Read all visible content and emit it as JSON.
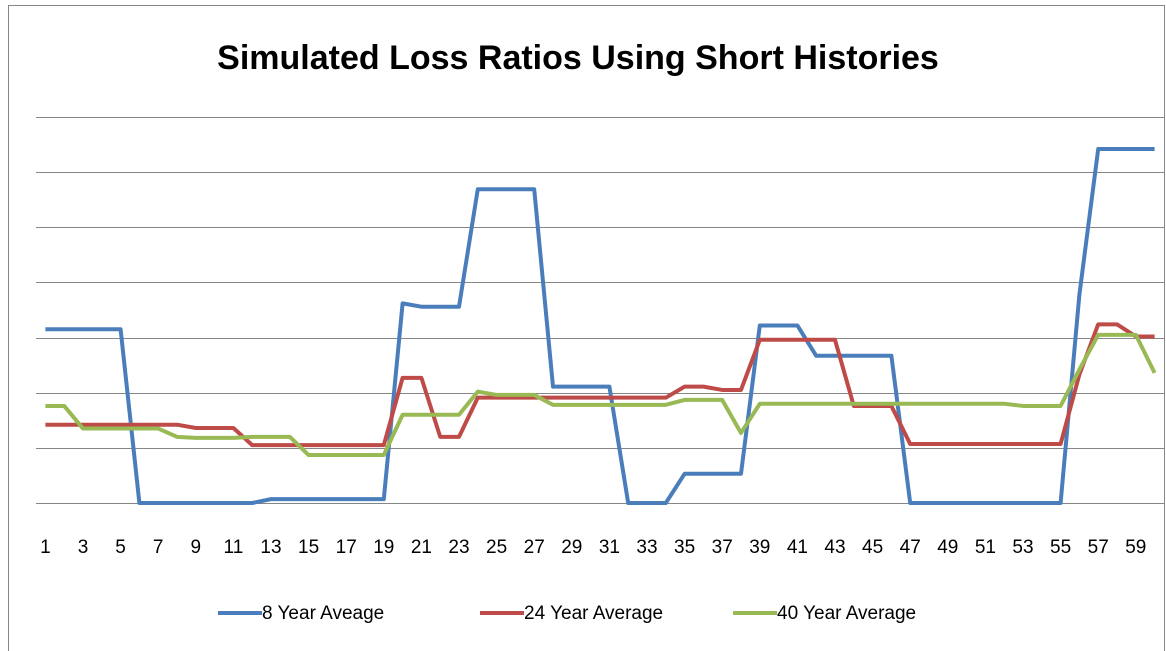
{
  "chart_data": {
    "type": "line",
    "title": "Simulated Loss Ratios Using Short Histories",
    "categories": [
      "1",
      null,
      "3",
      null,
      "5",
      null,
      "7",
      null,
      "9",
      null,
      "11",
      null,
      "13",
      null,
      "15",
      null,
      "17",
      null,
      "19",
      null,
      "21",
      null,
      "23",
      null,
      "25",
      null,
      "27",
      null,
      "29",
      null,
      "31",
      null,
      "33",
      null,
      "35",
      null,
      "37",
      null,
      "39",
      null,
      "41",
      null,
      "43",
      null,
      "45",
      null,
      "47",
      null,
      "49",
      null,
      "51",
      null,
      "53",
      null,
      "55",
      null,
      "57",
      null,
      "59",
      null
    ],
    "series": [
      {
        "name": "8 Year Aveage",
        "color": "#4a7ebb",
        "values": [
          3.15,
          3.15,
          3.15,
          3.15,
          3.15,
          0,
          0,
          0,
          0,
          0,
          0,
          0,
          0.07,
          0.07,
          0.07,
          0.07,
          0.07,
          0.07,
          0.07,
          3.62,
          3.56,
          3.56,
          3.56,
          5.69,
          5.69,
          5.69,
          5.69,
          2.11,
          2.11,
          2.11,
          2.11,
          0,
          0,
          0,
          0.53,
          0.53,
          0.53,
          0.53,
          3.22,
          3.22,
          3.22,
          2.67,
          2.67,
          2.67,
          2.67,
          2.67,
          0,
          0,
          0,
          0,
          0,
          0,
          0,
          0,
          0,
          3.78,
          6.42,
          6.42,
          6.42,
          6.42
        ]
      },
      {
        "name": "24 Year Average",
        "color": "#be4b48",
        "values": [
          1.42,
          1.42,
          1.42,
          1.42,
          1.42,
          1.42,
          1.42,
          1.42,
          1.36,
          1.36,
          1.36,
          1.05,
          1.05,
          1.05,
          1.05,
          1.05,
          1.05,
          1.05,
          1.05,
          2.27,
          2.27,
          1.2,
          1.2,
          1.91,
          1.91,
          1.91,
          1.91,
          1.91,
          1.91,
          1.91,
          1.91,
          1.91,
          1.91,
          1.91,
          2.11,
          2.11,
          2.05,
          2.05,
          2.96,
          2.96,
          2.96,
          2.96,
          2.96,
          1.76,
          1.76,
          1.76,
          1.07,
          1.07,
          1.07,
          1.07,
          1.07,
          1.07,
          1.07,
          1.07,
          1.07,
          2.33,
          3.24,
          3.24,
          3.02,
          3.02
        ]
      },
      {
        "name": "40 Year Average",
        "color": "#98b954",
        "values": [
          1.76,
          1.76,
          1.35,
          1.35,
          1.35,
          1.35,
          1.35,
          1.2,
          1.18,
          1.18,
          1.18,
          1.2,
          1.2,
          1.2,
          0.87,
          0.87,
          0.87,
          0.87,
          0.87,
          1.6,
          1.6,
          1.6,
          1.6,
          2.02,
          1.96,
          1.96,
          1.96,
          1.78,
          1.78,
          1.78,
          1.78,
          1.78,
          1.78,
          1.78,
          1.87,
          1.87,
          1.87,
          1.27,
          1.8,
          1.8,
          1.8,
          1.8,
          1.8,
          1.8,
          1.8,
          1.8,
          1.8,
          1.8,
          1.8,
          1.8,
          1.8,
          1.8,
          1.76,
          1.76,
          1.76,
          2.42,
          3.05,
          3.05,
          3.05,
          2.36
        ]
      }
    ],
    "ylim": [
      0,
      7
    ],
    "yticks": [
      0,
      1,
      2,
      3,
      4,
      5,
      6,
      7
    ],
    "grid": true,
    "legend": "bottom"
  }
}
